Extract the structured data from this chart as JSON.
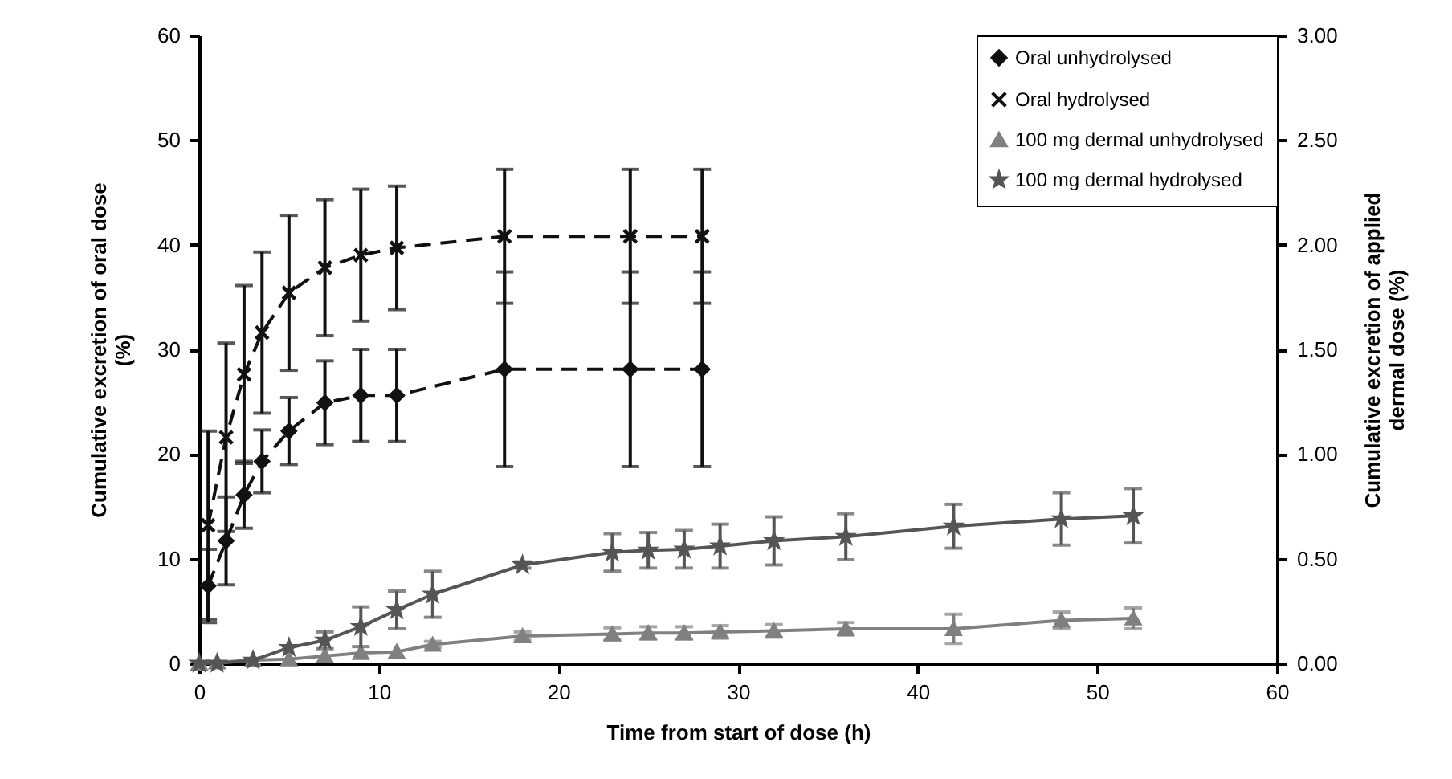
{
  "chart_data": {
    "type": "line",
    "xlabel": "Time from start of dose (h)",
    "ylabel": "Cumulative excretion of oral dose (%)",
    "y2label": "Cumulative excretion of applied dermal dose (%)",
    "xlim": [
      0,
      60
    ],
    "xticks": [
      0,
      10,
      20,
      30,
      40,
      50,
      60
    ],
    "ylim": [
      0,
      60
    ],
    "yticks": [
      0,
      10,
      20,
      30,
      40,
      50,
      60
    ],
    "y2lim": [
      0,
      3
    ],
    "y2ticks": [
      {
        "value": 0,
        "label": "0.00"
      },
      {
        "value": 0.5,
        "label": "0.50"
      },
      {
        "value": 1,
        "label": "1.00"
      },
      {
        "value": 1.5,
        "label": "1.50"
      },
      {
        "value": 2,
        "label": "2.00"
      },
      {
        "value": 2.5,
        "label": "2.50"
      },
      {
        "value": 3,
        "label": "3.00"
      }
    ],
    "grid": false,
    "legend": "top right",
    "series": [
      {
        "name": "Oral unhydrolysed",
        "color": "#111111",
        "marker": "diamond",
        "line_style": "dashed",
        "x": [
          0.5,
          1.5,
          2.5,
          3.5,
          5,
          7,
          9,
          11,
          17,
          24,
          28
        ],
        "values": [
          7.4,
          11.7,
          16.1,
          19.3,
          22.2,
          24.9,
          25.6,
          25.6,
          28.1,
          28.1,
          28.1
        ],
        "errors": [
          3.5,
          4.2,
          3.2,
          3,
          3.2,
          4,
          4.4,
          4.4,
          9.3,
          9.3,
          9.3
        ]
      },
      {
        "name": "Oral hydrolysed",
        "color": "#111111",
        "marker": "cross",
        "line_style": "dashed",
        "x": [
          0.5,
          1.5,
          2.5,
          3.5,
          5,
          7,
          9,
          11,
          17,
          24,
          28
        ],
        "values": [
          13.2,
          21.6,
          27.6,
          31.6,
          35.4,
          37.8,
          39.0,
          39.7,
          40.8,
          40.8,
          40.8
        ],
        "errors": [
          9,
          9,
          8.5,
          7.7,
          7.4,
          6.5,
          6.3,
          5.9,
          6.4,
          6.4,
          6.4
        ]
      },
      {
        "name": "100 mg dermal unhydrolysed",
        "color": "#808080",
        "marker": "triangle",
        "line_style": "solid",
        "axis": "y2",
        "x": [
          0,
          1,
          3,
          5,
          7,
          9,
          11,
          13,
          18,
          23,
          25,
          27,
          29,
          32,
          36,
          42,
          48,
          52
        ],
        "values": [
          0,
          0.005,
          0.015,
          0.02,
          0.035,
          0.05,
          0.055,
          0.09,
          0.13,
          0.14,
          0.145,
          0.145,
          0.15,
          0.155,
          0.165,
          0.165,
          0.205,
          0.215
        ],
        "errors": [
          null,
          null,
          null,
          null,
          null,
          null,
          null,
          0.015,
          0.02,
          0.03,
          0.03,
          0.03,
          0.03,
          0.03,
          0.03,
          0.07,
          0.04,
          0.05
        ]
      },
      {
        "name": "100 mg dermal hydrolysed",
        "color": "#555555",
        "marker": "star",
        "line_style": "solid",
        "axis": "y2",
        "x": [
          0,
          1,
          3,
          5,
          7,
          9,
          11,
          13,
          18,
          23,
          25,
          27,
          29,
          32,
          36,
          42,
          48,
          52
        ],
        "values": [
          0,
          0,
          0.015,
          0.075,
          0.11,
          0.175,
          0.255,
          0.33,
          0.47,
          0.53,
          0.54,
          0.545,
          0.56,
          0.585,
          0.605,
          0.655,
          0.69,
          0.705
        ],
        "errors": [
          null,
          null,
          null,
          null,
          0.04,
          0.095,
          0.09,
          0.11,
          0.015,
          0.09,
          0.085,
          0.09,
          0.105,
          0.115,
          0.11,
          0.105,
          0.125,
          0.13
        ]
      }
    ]
  }
}
